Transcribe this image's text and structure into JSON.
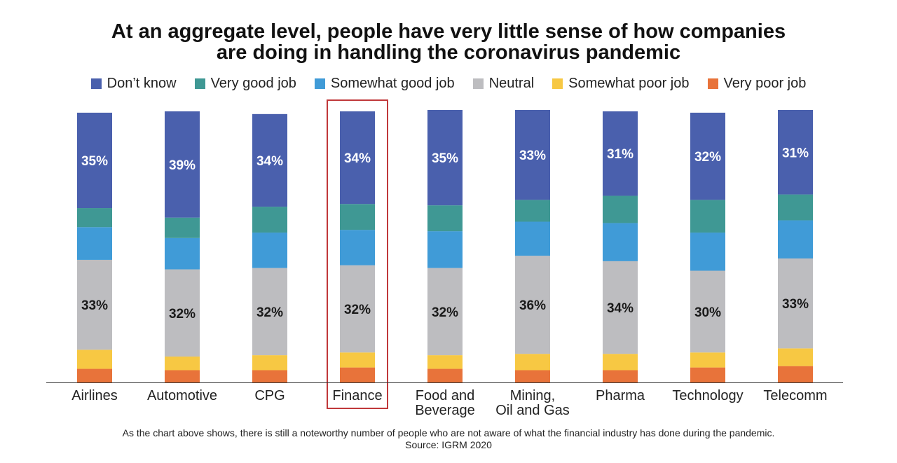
{
  "title_line1": "At an aggregate level, people have very little sense of how companies",
  "title_line2": "are doing in handling the coronavirus pandemic",
  "footer_note": "As the chart above shows, there is still a noteworthy number of people who are not aware of what the financial industry has done during the pandemic.",
  "footer_source": "Source: IGRM 2020",
  "highlight_category": "Finance",
  "chart_data": {
    "type": "bar",
    "stacked": true,
    "orientation": "vertical",
    "categories": [
      "Airlines",
      "Automotive",
      "CPG",
      "Finance",
      "Food and Beverage",
      "Mining, Oil and Gas",
      "Pharma",
      "Technology",
      "Telecomm"
    ],
    "category_lines": [
      [
        "Airlines"
      ],
      [
        "Automotive"
      ],
      [
        "CPG"
      ],
      [
        "Finance"
      ],
      [
        "Food and",
        "Beverage"
      ],
      [
        "Mining,",
        "Oil and Gas"
      ],
      [
        "Pharma"
      ],
      [
        "Technology"
      ],
      [
        "Telecomm"
      ]
    ],
    "ylim": [
      0,
      100
    ],
    "legend_position": "top",
    "series": [
      {
        "name": "Very poor job",
        "color": "#E8733A",
        "values": [
          5,
          4.5,
          4.5,
          5.5,
          5,
          4.5,
          4.5,
          5.5,
          6
        ]
      },
      {
        "name": "Somewhat poor job",
        "color": "#F7C843",
        "values": [
          7,
          5,
          5.5,
          5.5,
          5,
          6,
          6,
          5.5,
          6.5
        ]
      },
      {
        "name": "Neutral",
        "color": "#BDBDC0",
        "values": [
          33,
          32,
          32,
          32,
          32,
          36,
          34,
          30,
          33
        ]
      },
      {
        "name": "Somewhat good job",
        "color": "#409BD7",
        "values": [
          12,
          11.5,
          13,
          13,
          13.5,
          12.5,
          14,
          14,
          14
        ]
      },
      {
        "name": "Very good job",
        "color": "#3F9894",
        "values": [
          7,
          7.5,
          9.5,
          9.5,
          9.5,
          8,
          10,
          12,
          9.5
        ]
      },
      {
        "name": "Don't know",
        "color": "#4A60AD",
        "values": [
          35,
          39,
          34,
          34,
          35,
          33,
          31,
          32,
          31
        ]
      }
    ],
    "labeled_series": [
      "Neutral",
      "Don't know"
    ],
    "data_labels": {
      "Don't know": [
        "35%",
        "39%",
        "34%",
        "34%",
        "35%",
        "33%",
        "31%",
        "32%",
        "31%"
      ],
      "Neutral": [
        "33%",
        "32%",
        "32%",
        "32%",
        "32%",
        "36%",
        "34%",
        "30%",
        "33%"
      ]
    },
    "legend": [
      {
        "label": "Don’t know",
        "color": "#4A60AD"
      },
      {
        "label": "Very good job",
        "color": "#3F9894"
      },
      {
        "label": "Somewhat good job",
        "color": "#409BD7"
      },
      {
        "label": "Neutral",
        "color": "#BDBDC0"
      },
      {
        "label": "Somewhat poor job",
        "color": "#F7C843"
      },
      {
        "label": "Very poor job",
        "color": "#E8733A"
      }
    ]
  }
}
